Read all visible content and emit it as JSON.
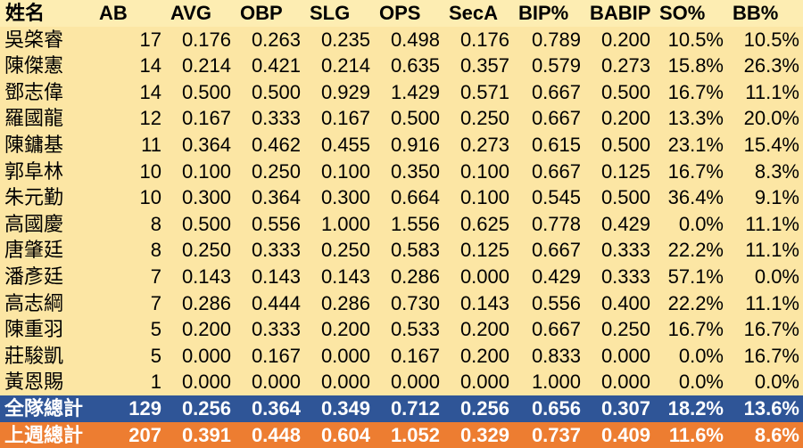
{
  "table": {
    "header": [
      "姓名",
      "AB",
      "AVG",
      "OBP",
      "SLG",
      "OPS",
      "SecA",
      "BIP%",
      "BABIP",
      "SO%",
      "BB%"
    ],
    "rows": [
      [
        "吳棨睿",
        "17",
        "0.176",
        "0.263",
        "0.235",
        "0.498",
        "0.176",
        "0.789",
        "0.200",
        "10.5%",
        "10.5%"
      ],
      [
        "陳傑憲",
        "14",
        "0.214",
        "0.421",
        "0.214",
        "0.635",
        "0.357",
        "0.579",
        "0.273",
        "15.8%",
        "26.3%"
      ],
      [
        "鄧志偉",
        "14",
        "0.500",
        "0.500",
        "0.929",
        "1.429",
        "0.571",
        "0.667",
        "0.500",
        "16.7%",
        "11.1%"
      ],
      [
        "羅國龍",
        "12",
        "0.167",
        "0.333",
        "0.167",
        "0.500",
        "0.250",
        "0.667",
        "0.200",
        "13.3%",
        "20.0%"
      ],
      [
        "陳鏞基",
        "11",
        "0.364",
        "0.462",
        "0.455",
        "0.916",
        "0.273",
        "0.615",
        "0.500",
        "23.1%",
        "15.4%"
      ],
      [
        "郭阜林",
        "10",
        "0.100",
        "0.250",
        "0.100",
        "0.350",
        "0.100",
        "0.667",
        "0.125",
        "16.7%",
        "8.3%"
      ],
      [
        "朱元勤",
        "10",
        "0.300",
        "0.364",
        "0.300",
        "0.664",
        "0.100",
        "0.545",
        "0.500",
        "36.4%",
        "9.1%"
      ],
      [
        "高國慶",
        "8",
        "0.500",
        "0.556",
        "1.000",
        "1.556",
        "0.625",
        "0.778",
        "0.429",
        "0.0%",
        "11.1%"
      ],
      [
        "唐肇廷",
        "8",
        "0.250",
        "0.333",
        "0.250",
        "0.583",
        "0.125",
        "0.667",
        "0.333",
        "22.2%",
        "11.1%"
      ],
      [
        "潘彥廷",
        "7",
        "0.143",
        "0.143",
        "0.143",
        "0.286",
        "0.000",
        "0.429",
        "0.333",
        "57.1%",
        "0.0%"
      ],
      [
        "高志綱",
        "7",
        "0.286",
        "0.444",
        "0.286",
        "0.730",
        "0.143",
        "0.556",
        "0.400",
        "22.2%",
        "11.1%"
      ],
      [
        "陳重羽",
        "5",
        "0.200",
        "0.333",
        "0.200",
        "0.533",
        "0.200",
        "0.667",
        "0.250",
        "16.7%",
        "16.7%"
      ],
      [
        "莊駿凱",
        "5",
        "0.000",
        "0.167",
        "0.000",
        "0.167",
        "0.200",
        "0.833",
        "0.000",
        "0.0%",
        "16.7%"
      ],
      [
        "黃恩賜",
        "1",
        "0.000",
        "0.000",
        "0.000",
        "0.000",
        "0.000",
        "1.000",
        "0.000",
        "0.0%",
        "0.0%"
      ]
    ],
    "team_total": [
      "全隊總計",
      "129",
      "0.256",
      "0.364",
      "0.349",
      "0.712",
      "0.256",
      "0.656",
      "0.307",
      "18.2%",
      "13.6%"
    ],
    "last_week_total": [
      "上週總計",
      "207",
      "0.391",
      "0.448",
      "0.604",
      "1.052",
      "0.329",
      "0.737",
      "0.409",
      "11.6%",
      "8.6%"
    ]
  }
}
